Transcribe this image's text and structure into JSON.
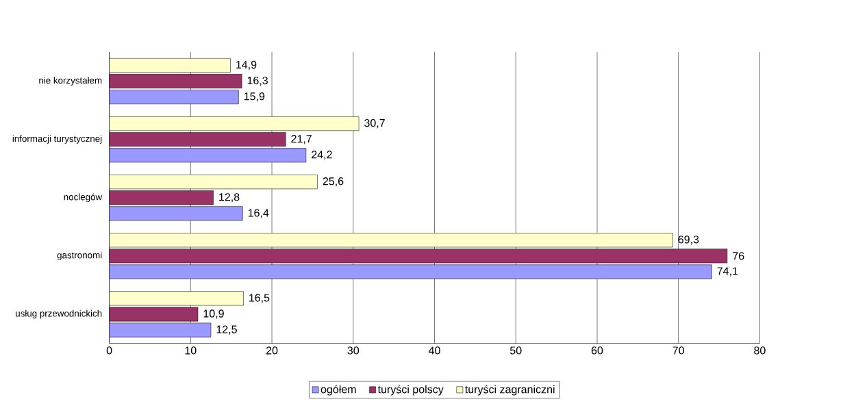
{
  "chart_data": {
    "type": "bar",
    "orientation": "horizontal",
    "categories": [
      "nie korzystałem",
      "informacji turystycznej",
      "noclegów",
      "gastronomi",
      "usług przewodnickich"
    ],
    "series": [
      {
        "name": "ogółem",
        "color": "#9999ff",
        "values": [
          15.9,
          24.2,
          16.4,
          74.1,
          12.5
        ],
        "value_labels": [
          "15,9",
          "24,2",
          "16,4",
          "74,1",
          "12,5"
        ]
      },
      {
        "name": "turyści polscy",
        "color": "#993366",
        "values": [
          16.3,
          21.7,
          12.8,
          76,
          10.9
        ],
        "value_labels": [
          "16,3",
          "21,7",
          "12,8",
          "76",
          "10,9"
        ]
      },
      {
        "name": "turyści zagraniczni",
        "color": "#ffffcc",
        "values": [
          14.9,
          30.7,
          25.6,
          69.3,
          16.5
        ],
        "value_labels": [
          "14,9",
          "30,7",
          "25,6",
          "69,3",
          "16,5"
        ]
      }
    ],
    "xlim": [
      0,
      80
    ],
    "xticks": [
      0,
      10,
      20,
      30,
      40,
      50,
      60,
      70,
      80
    ],
    "grid": "x",
    "legend": "bottom"
  }
}
